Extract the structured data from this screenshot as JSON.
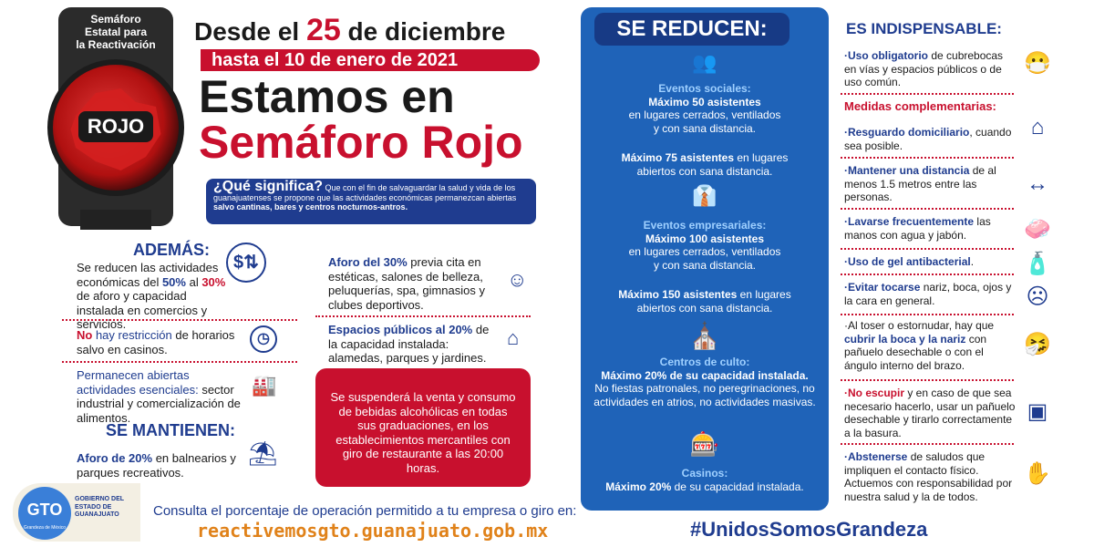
{
  "traffic_light": {
    "title_line1": "Semáforo",
    "title_line2": "Estatal para",
    "title_line3": "la Reactivación",
    "status": "ROJO"
  },
  "header": {
    "desde_pre": "Desde el ",
    "desde_day": "25",
    "desde_post": " de diciembre",
    "hasta": "hasta el 10 de enero de 2021",
    "estamos": "Estamos en",
    "semaforo": "Semáforo Rojo"
  },
  "que_significa": {
    "title": "¿Qué significa?",
    "text_a": " Que con el fin de salvaguardar la salud y vida de los guanajuatenses se propone que las actividades económicas permanezcan abiertas ",
    "text_b": "salvo cantinas, bares y centros nocturnos-antros."
  },
  "ademas": {
    "title": "ADEMÁS:",
    "item1_a": "Se reducen las actividades económicas del ",
    "item1_b": "50%",
    "item1_c": " al ",
    "item1_d": "30%",
    "item1_e": " de aforo y capacidad instalada en comercios y servicios.",
    "item2_a": "No",
    "item2_b": " hay restricción",
    "item2_c": " de horarios salvo en casinos.",
    "item3_a": "Permanecen abiertas actividades esenciales:",
    "item3_b": " sector industrial y comercialización de alimentos."
  },
  "se_mantienen": {
    "title": "SE MANTIENEN:",
    "item_a": "Aforo de 20%",
    "item_b": " en balnearios y parques recreativos."
  },
  "middle": {
    "item1_a": "Aforo del 30%",
    "item1_b": " previa cita en estéticas, salones de belleza, peluquerías, spa, gimnasios y clubes deportivos.",
    "item2_a": "Espacios públicos al 20%",
    "item2_b": " de la capacidad instalada: alamedas, parques y jardines.",
    "red_box": "Se suspenderá la venta y consumo de bebidas alcohólicas en todas sus graduaciones, en los establecimientos mercantiles con giro de restaurante a las 20:00 horas."
  },
  "se_reducen": {
    "title": "SE REDUCEN:",
    "sociales_h": "Eventos sociales:",
    "sociales_1b": "Máximo 50 asistentes",
    "sociales_1": "en lugares cerrados, ventilados y con sana distancia.",
    "sociales_2b": "Máximo 75 asistentes",
    "sociales_2": " en lugares abiertos con sana distancia.",
    "empresariales_h": "Eventos empresariales:",
    "empresariales_1b": "Máximo 100 asistentes",
    "empresariales_1": "en lugares cerrados, ventilados y con sana distancia.",
    "empresariales_2b": "Máximo 150 asistentes",
    "empresariales_2": " en lugares abiertos con sana distancia.",
    "culto_h": "Centros de culto:",
    "culto_b": "Máximo 20%",
    "culto_1": " de su capacidad instalada.",
    "culto_2": "No fiestas patronales, no peregrinaciones, no actividades en atrios, no actividades masivas.",
    "casinos_h": "Casinos:",
    "casinos_b": "Máximo 20%",
    "casinos_1": " de su capacidad instalada."
  },
  "indispensable": {
    "title": "ES INDISPENSABLE:",
    "i1_b": "·Uso obligatorio",
    "i1": " de cubrebocas en vías y espacios públicos o de uso común.",
    "complementarias": "Medidas complementarias:",
    "i2_b": "·Resguardo domiciliario",
    "i2": ", cuando sea posible.",
    "i3_b": "·Mantener una distancia",
    "i3": " de al menos 1.5 metros entre las personas.",
    "i4_b": "·Lavarse frecuentemente",
    "i4": " las manos con agua y jabón.",
    "i5_b": "·Uso de gel antibacterial",
    "i5": ".",
    "i6_b": "·Evitar tocarse",
    "i6": " nariz, boca, ojos y la cara en general.",
    "i7_a": "·Al toser o estornudar, hay que ",
    "i7_b": "cubrir la boca y la nariz",
    "i7": " con pañuelo desechable o con el ángulo interno del brazo.",
    "i8_b": "·No escupir",
    "i8": " y en caso de que sea necesario hacerlo, usar un pañuelo desechable y tirarlo correctamente a la basura.",
    "i9_b": "·Abstenerse",
    "i9": " de saludos que impliquen el contacto físico. Actuemos con responsabilidad por nuestra salud y la de todos."
  },
  "footer": {
    "gto": "GTO",
    "gto_sub": "Grandeza de México",
    "gov": "GOBIERNO DEL ESTADO DE GUANAJUATO",
    "consulta": "Consulta el porcentaje de operación permitido a tu empresa o giro en:",
    "url": "reactivemosgto.guanajuato.gob.mx",
    "hashtag": "#UnidosSomosGrandeza"
  },
  "colors": {
    "red": "#c8102e",
    "navy": "#1f3c8f",
    "blue_panel": "#1f63b8",
    "orange": "#e0821a"
  }
}
